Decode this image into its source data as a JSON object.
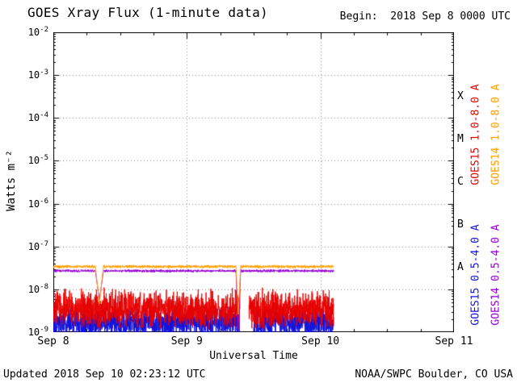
{
  "header": {
    "title": "GOES Xray Flux (1-minute data)",
    "begin_label": "Begin:  2018 Sep 8 0000 UTC"
  },
  "footer": {
    "updated": "Updated 2018 Sep 10 02:23:12 UTC",
    "credit": "NOAA/SWPC Boulder, CO USA"
  },
  "chart_data": {
    "type": "line",
    "title": "GOES Xray Flux (1-minute data)",
    "xlabel": "Universal Time",
    "ylabel": "Watts m⁻²",
    "x_axis": {
      "ticks": [
        {
          "label": "Sep 8",
          "day": 0
        },
        {
          "label": "Sep 9",
          "day": 1
        },
        {
          "label": "Sep 10",
          "day": 2
        },
        {
          "label": "Sep 11",
          "day": 3
        }
      ],
      "range_days": [
        0,
        3
      ],
      "minor_tick_hours": 6
    },
    "y_axis": {
      "scale": "log",
      "exponent_ticks": [
        -2,
        -3,
        -4,
        -5,
        -6,
        -7,
        -8,
        -9
      ],
      "log_range": [
        -9,
        -2
      ]
    },
    "grid": {
      "style": "dotted",
      "h_lines_log": [
        -3,
        -4,
        -5,
        -6,
        -7,
        -8
      ],
      "v_lines_day": [
        1,
        2
      ]
    },
    "flux_classes": [
      {
        "label": "X",
        "log_center": -3.5
      },
      {
        "label": "M",
        "log_center": -4.5
      },
      {
        "label": "C",
        "log_center": -5.5
      },
      {
        "label": "B",
        "log_center": -6.5
      },
      {
        "label": "A",
        "log_center": -7.5
      }
    ],
    "series": [
      {
        "name": "GOES15 0.5-4.0 A",
        "color": "#1212dd",
        "base_log": -8.78,
        "noise_log": 0.4,
        "t_start": 0.0,
        "t_end": 2.1,
        "seed": 101,
        "clip_low": -9.0,
        "gaps": [
          [
            1.395,
            1.5
          ]
        ],
        "dips": []
      },
      {
        "name": "GOES15 1.0-8.0 A",
        "color": "#e60000",
        "base_log": -8.45,
        "noise_log": 0.5,
        "t_start": 0.0,
        "t_end": 2.1,
        "seed": 202,
        "clip_low": -9.0,
        "gaps": [
          [
            1.397,
            1.465
          ]
        ],
        "dips": []
      },
      {
        "name": "GOES14 0.5-4.0 A",
        "color": "#9400d3",
        "base_log": -7.57,
        "noise_log": 0.035,
        "t_start": 0.0,
        "t_end": 2.1,
        "seed": 303,
        "clip_low": -9.0,
        "gaps": [],
        "dips": [
          {
            "t": 0.345,
            "w": 0.06,
            "low": -8.25
          },
          {
            "t": 1.385,
            "w": 0.035,
            "low": -8.95
          }
        ]
      },
      {
        "name": "GOES14 1.0-8.0 A",
        "color": "#ff9f00",
        "base_log": -7.47,
        "noise_log": 0.04,
        "t_start": 0.0,
        "t_end": 2.1,
        "seed": 404,
        "clip_low": -9.0,
        "gaps": [],
        "dips": [
          {
            "t": 0.345,
            "w": 0.06,
            "low": -8.35
          },
          {
            "t": 1.385,
            "w": 0.035,
            "low": -8.6
          }
        ]
      }
    ],
    "legend": [
      {
        "label": "GOES15 1.0-8.0 A",
        "color": "#e60000",
        "col": 0,
        "row": 0
      },
      {
        "label": "GOES14 1.0-8.0 A",
        "color": "#ff9f00",
        "col": 1,
        "row": 0
      },
      {
        "label": "GOES15 0.5-4.0 A",
        "color": "#1212dd",
        "col": 0,
        "row": 1
      },
      {
        "label": "GOES14 0.5-4.0 A",
        "color": "#9400d3",
        "col": 1,
        "row": 1
      }
    ]
  }
}
